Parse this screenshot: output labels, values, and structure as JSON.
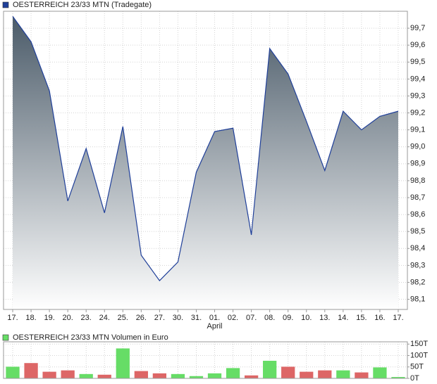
{
  "chart_data": [
    {
      "type": "area",
      "title": "OESTERREICH 23/33 MTN (Tradegate)",
      "color": "#1f3f99",
      "fill_top": "#4b5b69",
      "categories": [
        "17.",
        "18.",
        "19.",
        "20.",
        "23.",
        "24.",
        "25.",
        "26.",
        "27.",
        "30.",
        "31.",
        "01.",
        "02.",
        "07.",
        "08.",
        "09.",
        "10.",
        "13.",
        "14.",
        "15.",
        "16.",
        "17."
      ],
      "sub_categories": [
        null,
        null,
        null,
        null,
        null,
        null,
        null,
        null,
        null,
        null,
        null,
        "April",
        null,
        null,
        null,
        null,
        null,
        null,
        null,
        null,
        null,
        null
      ],
      "values": [
        99.77,
        99.62,
        99.33,
        98.68,
        98.99,
        98.61,
        99.12,
        98.36,
        98.21,
        98.32,
        98.85,
        99.09,
        99.11,
        98.48,
        99.58,
        99.43,
        99.15,
        98.86,
        99.21,
        99.1,
        99.18,
        99.21
      ],
      "ylim": [
        98.04,
        99.8
      ],
      "yticks": [
        {
          "value": 98.1,
          "label": "98,1"
        },
        {
          "value": 98.2,
          "label": "98,2"
        },
        {
          "value": 98.3,
          "label": "98,3"
        },
        {
          "value": 98.4,
          "label": "98,4"
        },
        {
          "value": 98.5,
          "label": "98,5"
        },
        {
          "value": 98.6,
          "label": "98,6"
        },
        {
          "value": 98.7,
          "label": "98,7"
        },
        {
          "value": 98.8,
          "label": "98,8"
        },
        {
          "value": 98.9,
          "label": "98,9"
        },
        {
          "value": 99.0,
          "label": "99,0"
        },
        {
          "value": 99.1,
          "label": "99,1"
        },
        {
          "value": 99.2,
          "label": "99,2"
        },
        {
          "value": 99.3,
          "label": "99,3"
        },
        {
          "value": 99.4,
          "label": "99,4"
        },
        {
          "value": 99.5,
          "label": "99,5"
        },
        {
          "value": 99.6,
          "label": "99,6"
        },
        {
          "value": 99.7,
          "label": "99,7"
        }
      ],
      "grid": true
    },
    {
      "type": "bar",
      "title": "OESTERREICH 23/33 MTN Volumen in Euro",
      "color": "#66dd66",
      "values": [
        51,
        67,
        29,
        35,
        19,
        16,
        131,
        32,
        22,
        19,
        10,
        22,
        45,
        13,
        77,
        51,
        29,
        35,
        35,
        26,
        48,
        6
      ],
      "colors": [
        "#66dd66",
        "#dd6666",
        "#dd6666",
        "#dd6666",
        "#66dd66",
        "#dd6666",
        "#66dd66",
        "#dd6666",
        "#dd6666",
        "#66dd66",
        "#66dd66",
        "#66dd66",
        "#66dd66",
        "#dd6666",
        "#66dd66",
        "#dd6666",
        "#dd6666",
        "#dd6666",
        "#66dd66",
        "#dd6666",
        "#66dd66",
        "#66dd66"
      ],
      "ylim": [
        0,
        160
      ],
      "yticks": [
        {
          "value": 0,
          "label": "0T"
        },
        {
          "value": 50,
          "label": "50T"
        },
        {
          "value": 100,
          "label": "100T"
        },
        {
          "value": 150,
          "label": "150T"
        }
      ],
      "grid": true
    }
  ]
}
